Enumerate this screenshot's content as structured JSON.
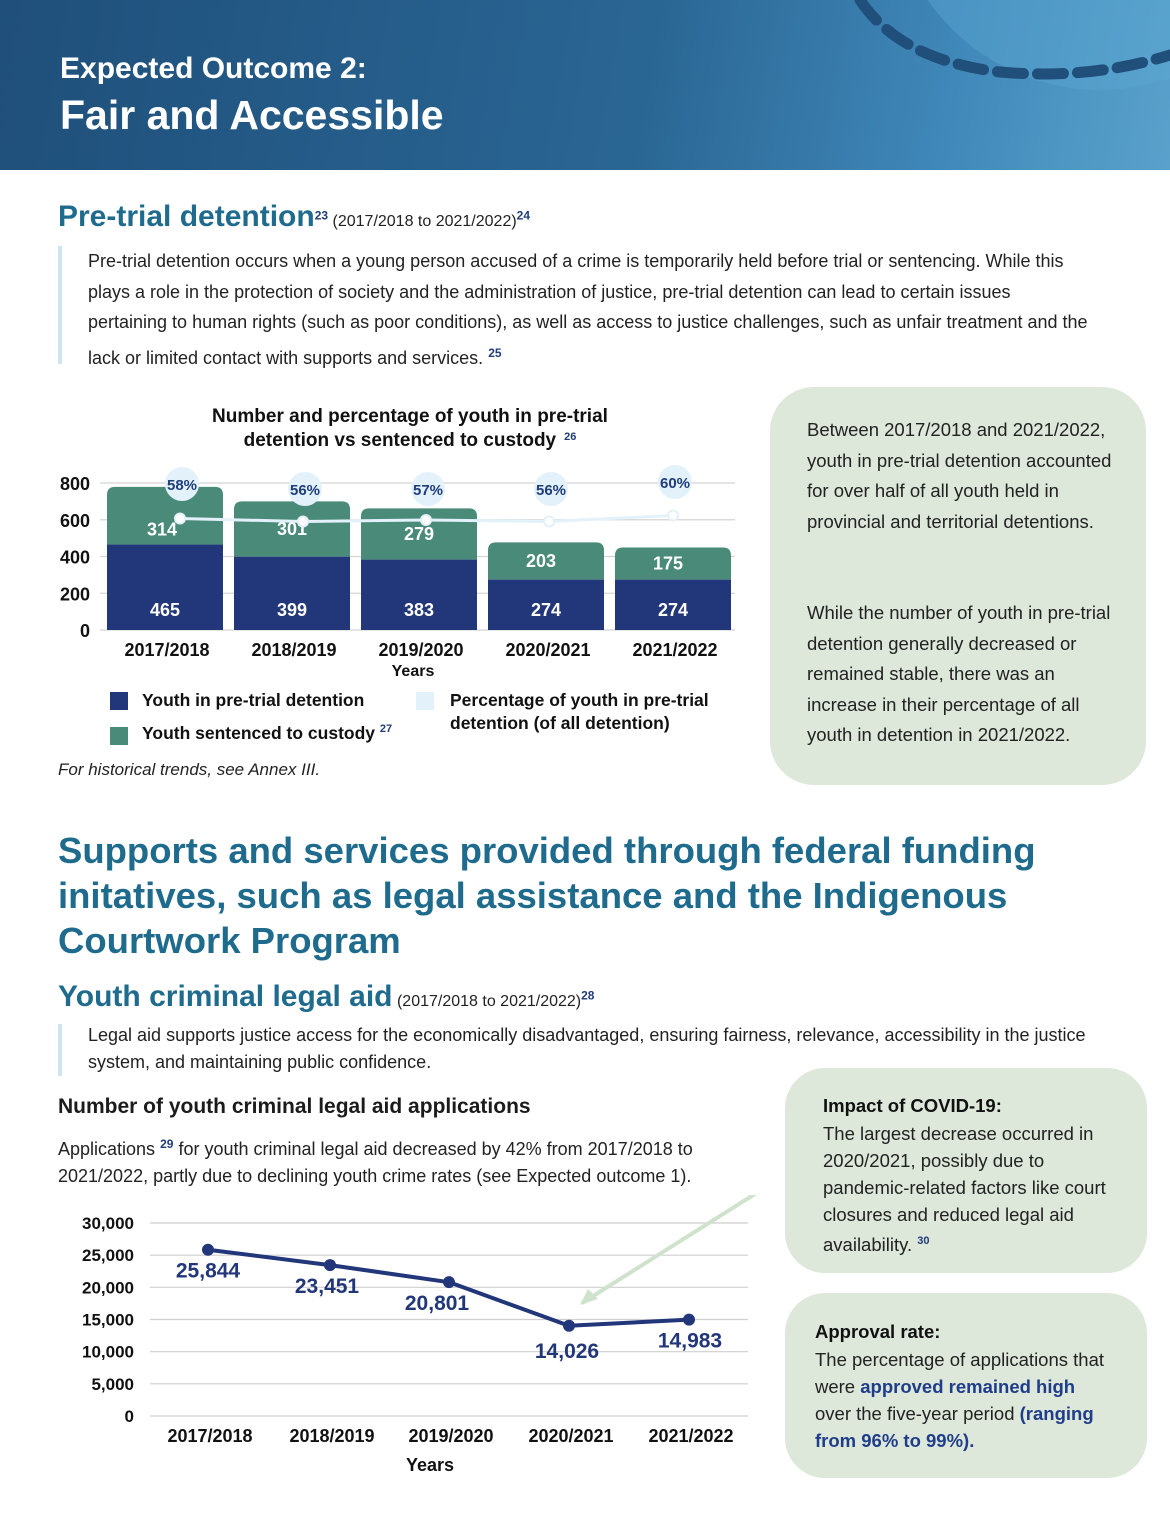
{
  "banner": {
    "pretitle": "Expected Outcome 2:",
    "title": "Fair and Accessible"
  },
  "section1": {
    "heading": "Pre-trial detention",
    "heading_sup": "23",
    "subtitle": "(2017/2018 to 2021/2022)",
    "subtitle_sup": "24",
    "paragraph": "Pre-trial detention occurs when a young person accused of a crime is temporarily held before trial or sentencing. While this plays a role in the protection of society and the administration of justice, pre-trial detention can lead to certain issues pertaining to human rights (such as poor conditions), as well as access to justice challenges, such as unfair treatment and the lack or limited contact with supports and services.",
    "paragraph_sup": "25",
    "note": "For historical trends, see Annex III.",
    "box1": "Between 2017/2018 and 2021/2022, youth in pre-trial detention accounted for over half of all youth held in provincial and territorial detentions.",
    "box2": "While the number of youth in pre-trial detention generally decreased or remained stable, there was an increase in their percentage of all youth in detention in 2021/2022."
  },
  "section2": {
    "heading": "Supports and services provided through federal funding initatives, such as legal assistance and the Indigenous Courtwork Program",
    "subheading": "Youth criminal legal aid",
    "subtitle": "(2017/2018 to 2021/2022)",
    "subtitle_sup": "28",
    "paragraph": "Legal aid supports justice access for the economically disadvantaged, ensuring fairness, relevance, accessibility in the justice system, and maintaining public confidence.",
    "chart_heading": "Number of youth criminal legal aid applications",
    "chart_desc_pre": "Applications",
    "chart_desc_sup": "29",
    "chart_desc_post": "for youth criminal legal aid decreased by 42% from 2017/2018 to 2021/2022, partly due to declining youth crime rates (see Expected outcome 1).",
    "covid_title": "Impact of COVID-19:",
    "covid_text": "The largest decrease occurred in 2020/2021, possibly due to pandemic-related factors like court closures and reduced legal aid availability.",
    "covid_sup": "30",
    "approval_title": "Approval rate:",
    "approval_pre": "The percentage of applications that were",
    "approval_bold": "approved remained high",
    "approval_mid": "over the five-year period",
    "approval_range": "(ranging from 96% to 99%)."
  },
  "chart_data": [
    {
      "type": "bar",
      "title": "Number and percentage of youth in pre-trial detention vs sentenced to custody",
      "title_sup": "26",
      "xlabel": "Years",
      "categories": [
        "2017/2018",
        "2018/2019",
        "2019/2020",
        "2020/2021",
        "2021/2022"
      ],
      "series": [
        {
          "name": "Youth in pre-trial detention",
          "values": [
            465,
            399,
            383,
            274,
            274
          ],
          "color": "#22367a"
        },
        {
          "name": "Youth sentenced to custody",
          "name_sup": "27",
          "values": [
            314,
            301,
            279,
            203,
            175
          ],
          "color": "#4a8a78"
        }
      ],
      "line_series": {
        "name": "Percentage of youth in pre-trial detention (of all detention)",
        "values": [
          58,
          56,
          57,
          56,
          60
        ],
        "labels": [
          "58%",
          "56%",
          "57%",
          "56%",
          "60%"
        ],
        "color": "#e3f1fb"
      },
      "yticks": [
        0,
        200,
        400,
        600,
        800
      ],
      "ytick_labels": [
        "0",
        "200",
        "400",
        "600",
        "800"
      ],
      "ylim": [
        0,
        800
      ],
      "stacked": true
    },
    {
      "type": "line",
      "categories": [
        "2017/2018",
        "2018/2019",
        "2019/2020",
        "2020/2021",
        "2021/2022"
      ],
      "values": [
        25844,
        23451,
        20801,
        14026,
        14983
      ],
      "labels": [
        "25,844",
        "23,451",
        "20,801",
        "14,026",
        "14,983"
      ],
      "xlabel": "Years",
      "yticks": [
        0,
        5000,
        10000,
        15000,
        20000,
        25000,
        30000
      ],
      "ytick_labels": [
        "0",
        "5,000",
        "10,000",
        "15,000",
        "20,000",
        "25,000",
        "30,000"
      ],
      "ylim": [
        0,
        30000
      ],
      "color": "#22367a"
    }
  ]
}
